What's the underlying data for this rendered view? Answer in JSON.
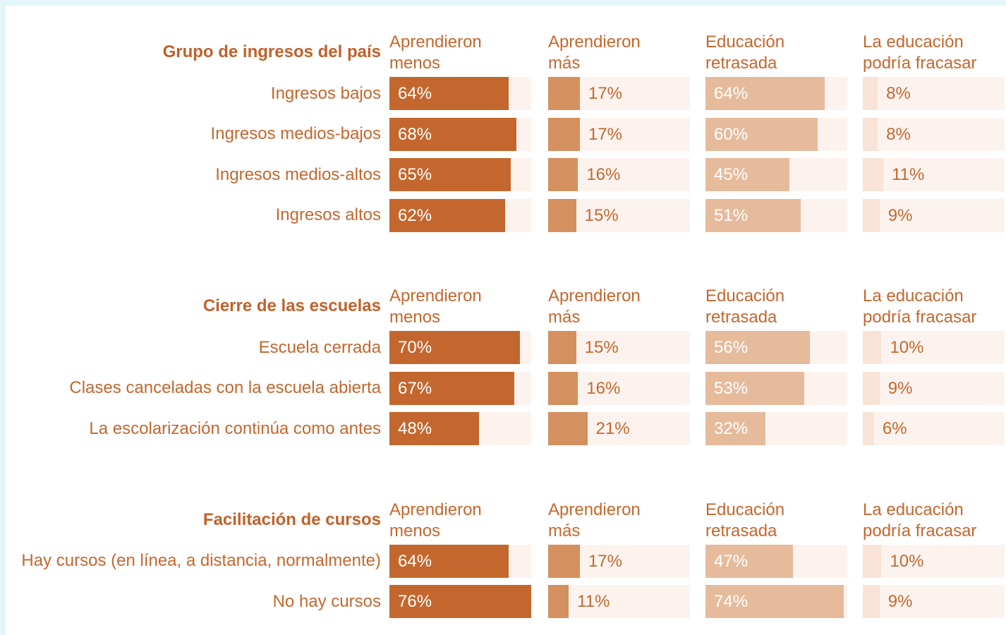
{
  "chart_data": [
    {
      "type": "bar",
      "title": "Grupo de ingresos del país",
      "categories": [
        "Ingresos bajos",
        "Ingresos medios-bajos",
        "Ingresos medios-altos",
        "Ingresos altos"
      ],
      "xlim": [
        0,
        76
      ],
      "series": [
        {
          "name": "Aprendieron menos",
          "color": "#c4672e",
          "values": [
            64,
            68,
            65,
            62
          ],
          "value_labels": [
            "64%",
            "68%",
            "65%",
            "62%"
          ]
        },
        {
          "name": "Aprendieron más",
          "color": "#d4905f",
          "values": [
            17,
            17,
            16,
            15
          ],
          "value_labels": [
            "17%",
            "17%",
            "16%",
            "15%"
          ]
        },
        {
          "name": "Educación retrasada",
          "color": "#e6bb9c",
          "values": [
            64,
            60,
            45,
            51
          ],
          "value_labels": [
            "64%",
            "60%",
            "45%",
            "51%"
          ]
        },
        {
          "name": "La educación podría fracasar",
          "color": "#f8e3d6",
          "values": [
            8,
            8,
            11,
            9
          ],
          "value_labels": [
            "8%",
            "8%",
            "11%",
            "9%"
          ]
        }
      ]
    },
    {
      "type": "bar",
      "title": "Cierre de las escuelas",
      "categories": [
        "Escuela cerrada",
        "Clases canceladas con la escuela abierta",
        "La escolarización continúa como antes"
      ],
      "xlim": [
        0,
        76
      ],
      "series": [
        {
          "name": "Aprendieron menos",
          "color": "#c4672e",
          "values": [
            70,
            67,
            48
          ],
          "value_labels": [
            "70%",
            "67%",
            "48%"
          ]
        },
        {
          "name": "Aprendieron más",
          "color": "#d4905f",
          "values": [
            15,
            16,
            21
          ],
          "value_labels": [
            "15%",
            "16%",
            "21%"
          ]
        },
        {
          "name": "Educación retrasada",
          "color": "#e6bb9c",
          "values": [
            56,
            53,
            32
          ],
          "value_labels": [
            "56%",
            "53%",
            "32%"
          ]
        },
        {
          "name": "La educación podría fracasar",
          "color": "#f8e3d6",
          "values": [
            10,
            9,
            6
          ],
          "value_labels": [
            "10%",
            "9%",
            "6%"
          ]
        }
      ]
    },
    {
      "type": "bar",
      "title": "Facilitación de cursos",
      "categories": [
        "Hay cursos (en línea, a distancia, normalmente)",
        "No hay cursos"
      ],
      "xlim": [
        0,
        76
      ],
      "series": [
        {
          "name": "Aprendieron menos",
          "color": "#c4672e",
          "values": [
            64,
            76
          ],
          "value_labels": [
            "64%",
            "76%"
          ]
        },
        {
          "name": "Aprendieron más",
          "color": "#d4905f",
          "values": [
            17,
            11
          ],
          "value_labels": [
            "17%",
            "11%"
          ]
        },
        {
          "name": "Educación retrasada",
          "color": "#e6bb9c",
          "values": [
            47,
            74
          ],
          "value_labels": [
            "47%",
            "74%"
          ]
        },
        {
          "name": "La educación podría fracasar",
          "color": "#f8e3d6",
          "values": [
            10,
            9
          ],
          "value_labels": [
            "10%",
            "9%"
          ]
        }
      ]
    }
  ]
}
